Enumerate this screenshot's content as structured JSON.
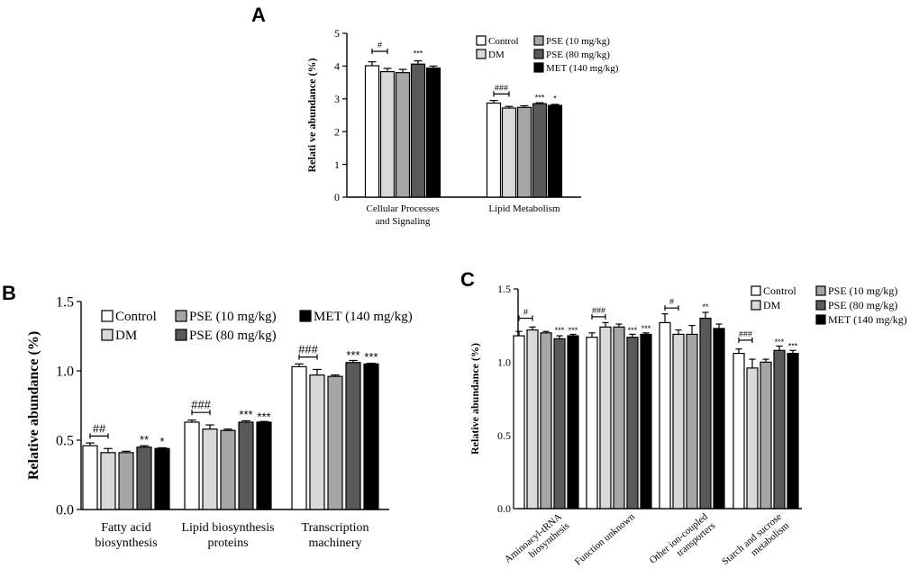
{
  "chart_data": [
    {
      "panel": "A",
      "type": "bar",
      "ylabel": "Relati ve abundance (%)",
      "ylim": [
        0,
        5
      ],
      "yticks": [
        "0",
        "1",
        "2",
        "3",
        "4",
        "5"
      ],
      "categories": [
        "Cellular Processes\nand Signaling",
        "Lipid Metabolism"
      ],
      "series": [
        {
          "name": "Control",
          "values": [
            4.01,
            2.87
          ],
          "errors": [
            0.12,
            0.08
          ],
          "color": "#ffffff"
        },
        {
          "name": "DM",
          "values": [
            3.83,
            2.72
          ],
          "errors": [
            0.1,
            0.05
          ],
          "color": "#d9d9d9"
        },
        {
          "name": "PSE (10 mg/kg)",
          "values": [
            3.8,
            2.74
          ],
          "errors": [
            0.1,
            0.05
          ],
          "color": "#a6a6a6"
        },
        {
          "name": "PSE (80 mg/kg)",
          "values": [
            4.06,
            2.85
          ],
          "errors": [
            0.1,
            0.03
          ],
          "color": "#595959"
        },
        {
          "name": "MET (140 mg/kg)",
          "values": [
            3.94,
            2.8
          ],
          "errors": [
            0.06,
            0.03
          ],
          "color": "#000000"
        }
      ],
      "significance": [
        {
          "label": "#",
          "bracket": true,
          "cat": 0,
          "from": 0,
          "to": 1,
          "y": 4.45
        },
        {
          "label": "***",
          "cat": 0,
          "series": 3,
          "y": 4.3
        },
        {
          "label": "###",
          "bracket": true,
          "cat": 1,
          "from": 0,
          "to": 1,
          "y": 3.15
        },
        {
          "label": "***",
          "cat": 1,
          "series": 3,
          "y": 2.96
        },
        {
          "label": "*",
          "cat": 1,
          "series": 4,
          "y": 2.92
        }
      ],
      "legend_position": "top-right"
    },
    {
      "panel": "B",
      "type": "bar",
      "ylabel": "Relative abundance (%)",
      "ylim": [
        0,
        1.5
      ],
      "yticks": [
        "0.0",
        "0.5",
        "1.0",
        "1.5"
      ],
      "categories": [
        "Fatty acid\nbiosynthesis",
        "Lipid biosynthesis\nproteins",
        "Transcription\nmachinery"
      ],
      "series": [
        {
          "name": "Control",
          "values": [
            0.46,
            0.63,
            1.03
          ],
          "errors": [
            0.02,
            0.015,
            0.02
          ],
          "color": "#ffffff"
        },
        {
          "name": "DM",
          "values": [
            0.41,
            0.58,
            0.97
          ],
          "errors": [
            0.03,
            0.03,
            0.04
          ],
          "color": "#d9d9d9"
        },
        {
          "name": "PSE (10 mg/kg)",
          "values": [
            0.41,
            0.57,
            0.96
          ],
          "errors": [
            0.01,
            0.01,
            0.01
          ],
          "color": "#a6a6a6"
        },
        {
          "name": "PSE (80 mg/kg)",
          "values": [
            0.45,
            0.63,
            1.06
          ],
          "errors": [
            0.01,
            0.01,
            0.015
          ],
          "color": "#595959"
        },
        {
          "name": "MET (140 mg/kg)",
          "values": [
            0.44,
            0.63,
            1.05
          ],
          "errors": [
            0.005,
            0.005,
            0.005
          ],
          "color": "#000000"
        }
      ],
      "significance": [
        {
          "label": "##",
          "bracket": true,
          "cat": 0,
          "from": 0,
          "to": 1,
          "y": 0.53
        },
        {
          "label": "**",
          "cat": 0,
          "series": 3,
          "y": 0.475
        },
        {
          "label": "*",
          "cat": 0,
          "series": 4,
          "y": 0.46
        },
        {
          "label": "###",
          "bracket": true,
          "cat": 1,
          "from": 0,
          "to": 1,
          "y": 0.7
        },
        {
          "label": "***",
          "cat": 1,
          "series": 3,
          "y": 0.655
        },
        {
          "label": "***",
          "cat": 1,
          "series": 4,
          "y": 0.64
        },
        {
          "label": "###",
          "bracket": true,
          "cat": 2,
          "from": 0,
          "to": 1,
          "y": 1.1
        },
        {
          "label": "***",
          "cat": 2,
          "series": 3,
          "y": 1.085
        },
        {
          "label": "***",
          "cat": 2,
          "series": 4,
          "y": 1.07
        }
      ],
      "legend_position": "top"
    },
    {
      "panel": "C",
      "type": "bar",
      "ylabel": "Relative abundance (%)",
      "ylim": [
        0,
        1.5
      ],
      "yticks": [
        "0.0",
        "0.5",
        "1.0",
        "1.5"
      ],
      "categories": [
        "Aminoacyl-tRNA\nbiosynthesis",
        "Function unknown",
        "Other ion-coupled\ntransporters",
        "Starch and sucrose\nmetabolism"
      ],
      "series": [
        {
          "name": "Control",
          "values": [
            1.18,
            1.17,
            1.27,
            1.06
          ],
          "errors": [
            0.03,
            0.03,
            0.06,
            0.03
          ],
          "color": "#ffffff"
        },
        {
          "name": "DM",
          "values": [
            1.22,
            1.24,
            1.19,
            0.96
          ],
          "errors": [
            0.02,
            0.03,
            0.03,
            0.06
          ],
          "color": "#d9d9d9"
        },
        {
          "name": "PSE (10 mg/kg)",
          "values": [
            1.2,
            1.24,
            1.19,
            1.0
          ],
          "errors": [
            0.01,
            0.02,
            0.06,
            0.02
          ],
          "color": "#a6a6a6"
        },
        {
          "name": "PSE (80 mg/kg)",
          "values": [
            1.16,
            1.17,
            1.3,
            1.08
          ],
          "errors": [
            0.02,
            0.02,
            0.04,
            0.03
          ],
          "color": "#595959"
        },
        {
          "name": "MET (140 mg/kg)",
          "values": [
            1.18,
            1.19,
            1.23,
            1.06
          ],
          "errors": [
            0.01,
            0.01,
            0.03,
            0.02
          ],
          "color": "#000000"
        }
      ],
      "significance": [
        {
          "label": "#",
          "bracket": true,
          "cat": 0,
          "from": 0,
          "to": 1,
          "y": 1.3
        },
        {
          "label": "***",
          "cat": 0,
          "series": 3,
          "y": 1.2
        },
        {
          "label": "***",
          "cat": 0,
          "series": 4,
          "y": 1.2
        },
        {
          "label": "###",
          "bracket": true,
          "cat": 1,
          "from": 0,
          "to": 1,
          "y": 1.31
        },
        {
          "label": "***",
          "cat": 1,
          "series": 3,
          "y": 1.2
        },
        {
          "label": "***",
          "cat": 1,
          "series": 4,
          "y": 1.21
        },
        {
          "label": "#",
          "bracket": true,
          "cat": 2,
          "from": 0,
          "to": 1,
          "y": 1.37
        },
        {
          "label": "**",
          "cat": 2,
          "series": 3,
          "y": 1.36
        },
        {
          "label": "###",
          "bracket": true,
          "cat": 3,
          "from": 0,
          "to": 1,
          "y": 1.15
        },
        {
          "label": "***",
          "cat": 3,
          "series": 3,
          "y": 1.12
        },
        {
          "label": "***",
          "cat": 3,
          "series": 4,
          "y": 1.09
        }
      ],
      "legend_position": "top-right"
    }
  ]
}
